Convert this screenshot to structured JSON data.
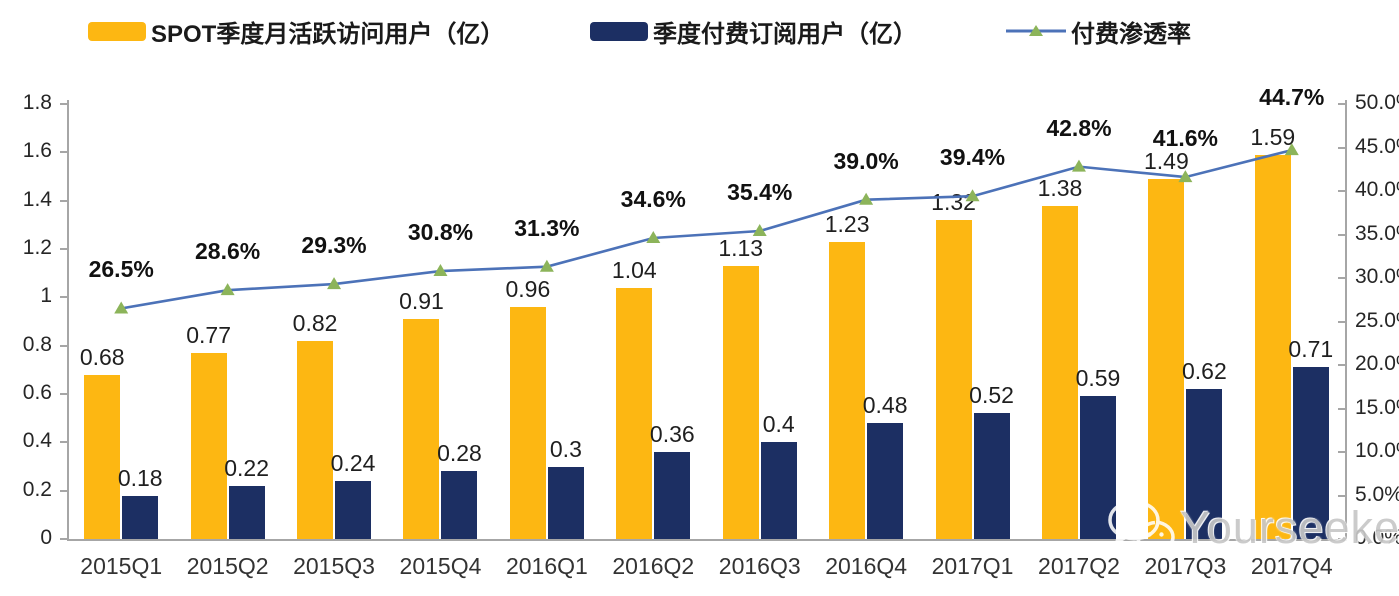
{
  "legend": {
    "items": [
      {
        "label": "SPOT季度月活跃访问用户（亿）",
        "color": "#FDB712",
        "type": "bar"
      },
      {
        "label": "季度付费订阅用户（亿）",
        "color": "#1C2F63",
        "type": "bar"
      },
      {
        "label": "付费渗透率",
        "color": "#4C72B8",
        "marker_color": "#8CB45A",
        "type": "line"
      }
    ]
  },
  "chart_data": {
    "type": "bar",
    "title": "",
    "categories": [
      "2015Q1",
      "2015Q2",
      "2015Q3",
      "2015Q4",
      "2016Q1",
      "2016Q2",
      "2016Q3",
      "2016Q4",
      "2017Q1",
      "2017Q2",
      "2017Q3",
      "2017Q4"
    ],
    "series": [
      {
        "name": "SPOT季度月活跃访问用户（亿）",
        "type": "bar",
        "axis": "left",
        "color": "#FDB712",
        "values": [
          0.68,
          0.77,
          0.82,
          0.91,
          0.96,
          1.04,
          1.13,
          1.23,
          1.32,
          1.38,
          1.49,
          1.59
        ],
        "labels": [
          "0.68",
          "0.77",
          "0.82",
          "0.91",
          "0.96",
          "1.04",
          "1.13",
          "1.23",
          "1.32",
          "1.38",
          "1.49",
          "1.59"
        ]
      },
      {
        "name": "季度付费订阅用户（亿）",
        "type": "bar",
        "axis": "left",
        "color": "#1C2F63",
        "values": [
          0.18,
          0.22,
          0.24,
          0.28,
          0.3,
          0.36,
          0.4,
          0.48,
          0.52,
          0.59,
          0.62,
          0.71
        ],
        "labels": [
          "0.18",
          "0.22",
          "0.24",
          "0.28",
          "0.3",
          "0.36",
          "0.4",
          "0.48",
          "0.52",
          "0.59",
          "0.62",
          "0.71"
        ]
      },
      {
        "name": "付费渗透率",
        "type": "line",
        "axis": "right",
        "color": "#4C72B8",
        "marker": "triangle",
        "marker_color": "#8CB45A",
        "values": [
          26.5,
          28.6,
          29.3,
          30.8,
          31.3,
          34.6,
          35.4,
          39.0,
          39.4,
          42.8,
          41.6,
          44.7
        ],
        "labels": [
          "26.5%",
          "28.6%",
          "29.3%",
          "30.8%",
          "31.3%",
          "34.6%",
          "35.4%",
          "39.0%",
          "39.4%",
          "42.8%",
          "41.6%",
          "44.7%"
        ]
      }
    ],
    "left_axis": {
      "min": 0,
      "max": 1.8,
      "tick_step": 0.2,
      "tick_labels": [
        "0",
        "0.2",
        "0.4",
        "0.6",
        "0.8",
        "1",
        "1.2",
        "1.4",
        "1.6",
        "1.8"
      ]
    },
    "right_axis": {
      "min": 0,
      "max": 50,
      "tick_step": 5,
      "tick_labels": [
        "0.0%",
        "5.0%",
        "10.0%",
        "15.0%",
        "20.0%",
        "25.0%",
        "30.0%",
        "35.0%",
        "40.0%",
        "45.0%",
        "50.0%"
      ]
    },
    "grid": false,
    "legend_position": "top"
  },
  "watermark": {
    "text": "Yourseeker"
  }
}
